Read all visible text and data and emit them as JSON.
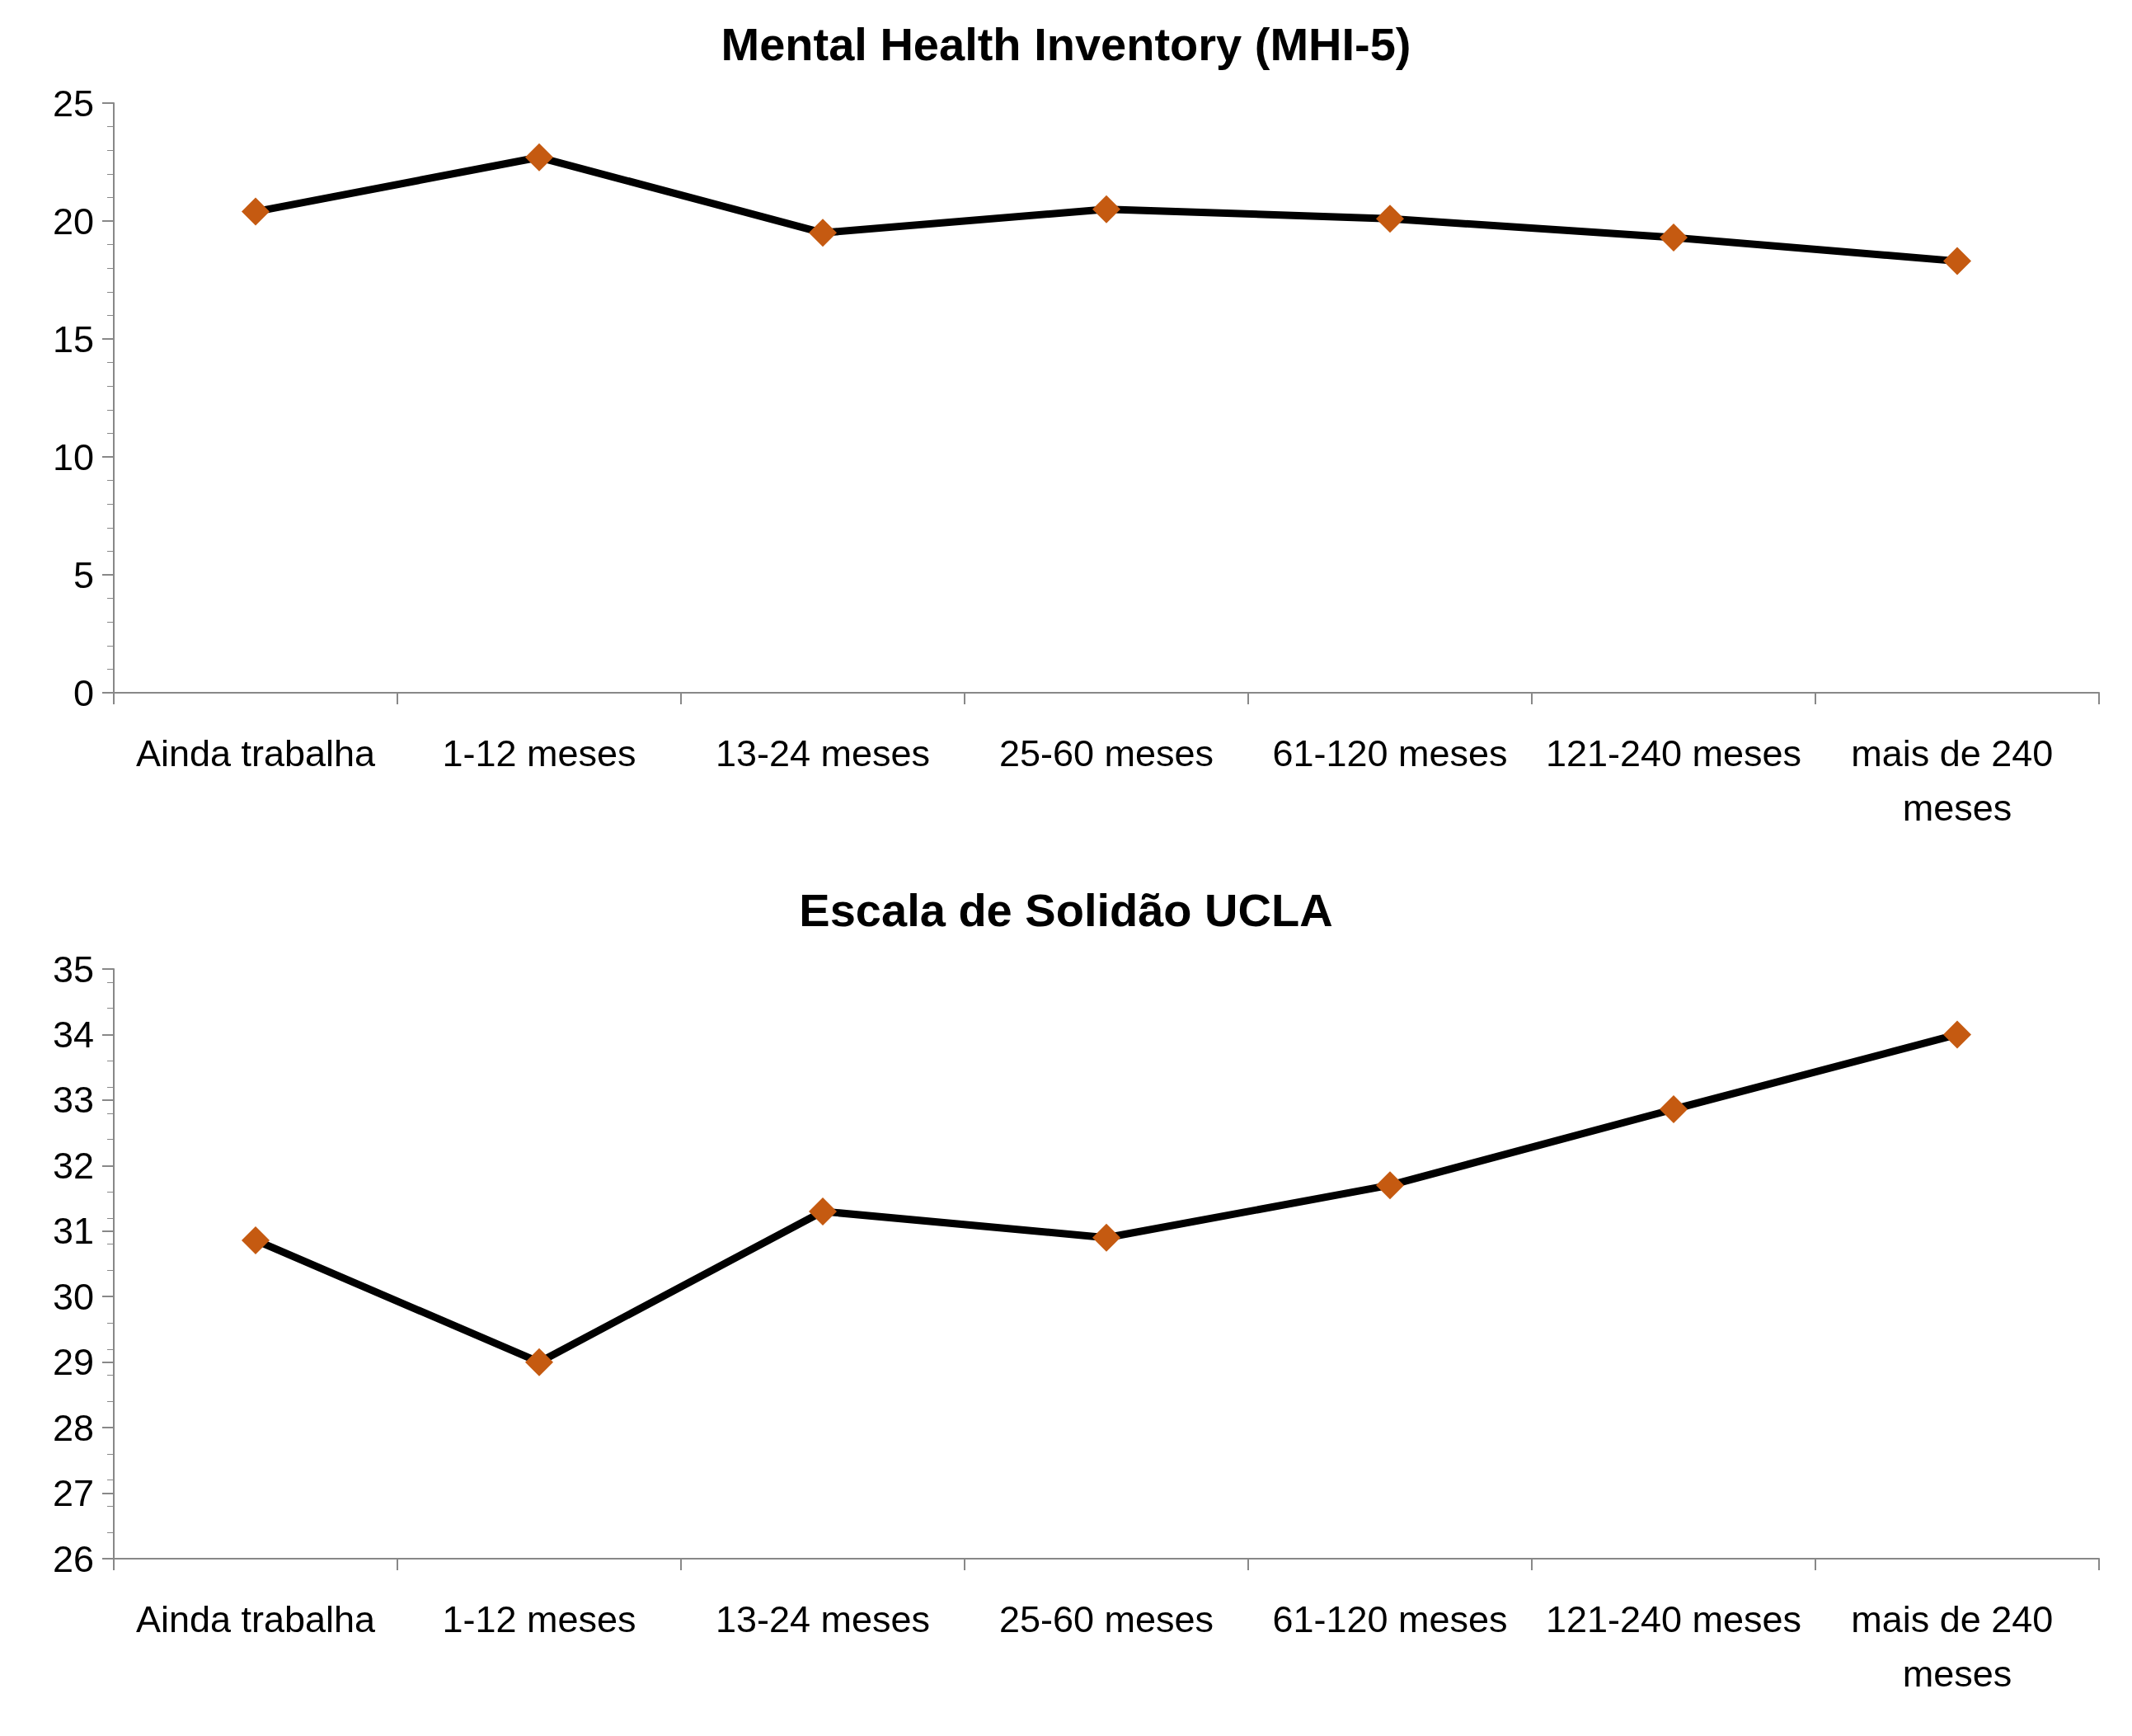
{
  "chart_data": [
    {
      "type": "line",
      "title": "Mental Health Inventory (MHI-5)",
      "categories": [
        "Ainda trabalha",
        "1-12 meses",
        "13-24 meses",
        "25-60 meses",
        "61-120 meses",
        "121-240 meses",
        "mais de 240 meses"
      ],
      "series": [
        {
          "color": "#000000",
          "colors": [
            "#c55a11",
            "#c55a11",
            "#c55a11",
            "#c55a11",
            "#c55a11",
            "#c55a11",
            "#c55a11"
          ],
          "values": [
            20.4,
            22.7,
            19.5,
            20.5,
            20.1,
            19.3,
            18.3
          ]
        }
      ],
      "marker": "diamond",
      "line_style": "solid",
      "ylim": [
        0,
        25
      ],
      "yticks": [
        0,
        5,
        10,
        15,
        20,
        25
      ]
    },
    {
      "type": "line",
      "title": "Escala de Solidão UCLA",
      "categories": [
        "Ainda trabalha",
        "1-12 meses",
        "13-24 meses",
        "25-60 meses",
        "61-120 meses",
        "121-240 meses",
        "mais de 240 meses"
      ],
      "series": [
        {
          "color": "#000000",
          "colors": [
            "#c55a11",
            "#c55a11",
            "#c55a11",
            "#c55a11",
            "#c55a11",
            "#c55a11",
            "#c55a11"
          ],
          "values": [
            30.86,
            29.0,
            31.3,
            30.9,
            31.7,
            32.86,
            34.0
          ]
        }
      ],
      "marker": "diamond",
      "line_style": "solid",
      "ylim": [
        26,
        35
      ],
      "yticks": [
        26,
        27,
        28,
        29,
        30,
        31,
        32,
        33,
        34,
        35
      ]
    }
  ]
}
